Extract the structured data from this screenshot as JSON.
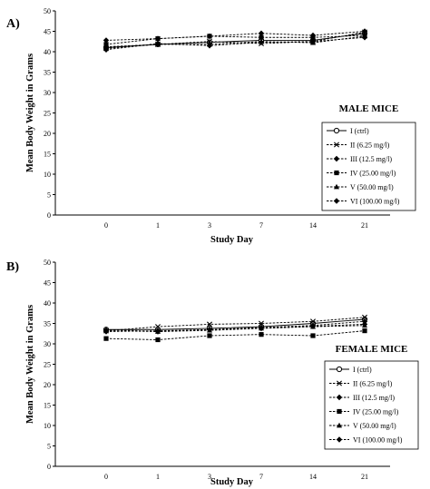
{
  "chart_data": [
    {
      "panel_label": "A)",
      "type": "line",
      "title": "MALE MICE",
      "xlabel": "Study Day",
      "ylabel": "Mean Body Weight in Grams",
      "categories": [
        "0",
        "1",
        "3",
        "7",
        "14",
        "21"
      ],
      "ylim": [
        0,
        50
      ],
      "yticks": [
        "0",
        "5",
        "10",
        "15",
        "20",
        "25",
        "30",
        "35",
        "40",
        "45",
        "50"
      ],
      "grid": false,
      "legend_position": "right",
      "series": [
        {
          "name": "I (ctrl)",
          "marker": "open-circle",
          "values": [
            41.0,
            41.8,
            42.3,
            42.8,
            42.8,
            44.5
          ]
        },
        {
          "name": "II (6.25 mg/l)",
          "marker": "x",
          "values": [
            40.8,
            41.8,
            42.5,
            42.0,
            42.5,
            44.8
          ]
        },
        {
          "name": "III (12.5 mg/l)",
          "marker": "diamond",
          "values": [
            42.8,
            43.2,
            43.8,
            44.5,
            44.0,
            45.0
          ]
        },
        {
          "name": "IV (25.00 mg/l)",
          "marker": "square",
          "values": [
            41.8,
            43.2,
            43.8,
            43.5,
            43.5,
            44.0
          ]
        },
        {
          "name": "V (50.00 mg/l)",
          "marker": "triangle",
          "values": [
            41.2,
            41.8,
            41.8,
            42.5,
            42.2,
            43.8
          ]
        },
        {
          "name": "VI (100.00 mg/l)",
          "marker": "diamond",
          "values": [
            40.5,
            42.0,
            41.5,
            42.3,
            42.5,
            43.5
          ]
        }
      ]
    },
    {
      "panel_label": "B)",
      "type": "line",
      "title": "FEMALE MICE",
      "xlabel": "Study Day",
      "ylabel": "Mean Body Weight in Grams",
      "categories": [
        "0",
        "1",
        "3",
        "7",
        "14",
        "21"
      ],
      "ylim": [
        0,
        50
      ],
      "yticks": [
        "0",
        "5",
        "10",
        "15",
        "20",
        "25",
        "30",
        "35",
        "40",
        "45",
        "50"
      ],
      "grid": false,
      "legend_position": "right",
      "series": [
        {
          "name": "I (ctrl)",
          "marker": "open-circle",
          "values": [
            33.5,
            33.5,
            33.8,
            34.2,
            35.0,
            36.0
          ]
        },
        {
          "name": "II (6.25 mg/l)",
          "marker": "x",
          "values": [
            33.2,
            34.2,
            34.8,
            35.0,
            35.5,
            36.5
          ]
        },
        {
          "name": "III (12.5 mg/l)",
          "marker": "diamond",
          "values": [
            33.0,
            33.2,
            33.5,
            34.0,
            34.5,
            35.5
          ]
        },
        {
          "name": "IV (25.00 mg/l)",
          "marker": "square",
          "values": [
            31.3,
            31.0,
            32.0,
            32.3,
            32.0,
            33.2
          ]
        },
        {
          "name": "V (50.00 mg/l)",
          "marker": "triangle",
          "values": [
            33.5,
            33.0,
            33.3,
            33.8,
            34.2,
            34.5
          ]
        },
        {
          "name": "VI (100.00 mg/l)",
          "marker": "diamond",
          "values": [
            33.2,
            33.0,
            33.5,
            33.8,
            34.3,
            34.8
          ]
        }
      ]
    }
  ]
}
